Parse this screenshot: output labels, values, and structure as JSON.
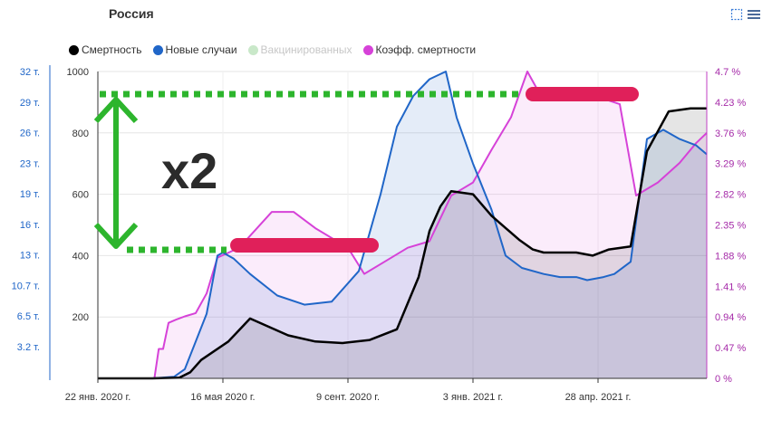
{
  "title": "Россия",
  "toolbar": {
    "icons": [
      "select-icon",
      "menu-icon"
    ]
  },
  "legend": [
    {
      "label": "Смертность",
      "color": "#000000",
      "active": true
    },
    {
      "label": "Новые случаи",
      "color": "#2066c8",
      "active": true
    },
    {
      "label": "Вакцинированных",
      "color": "#c9e8c9",
      "active": false
    },
    {
      "label": "Коэфф. смертности",
      "color": "#d642d8",
      "active": true
    }
  ],
  "annotation": {
    "text": "x2",
    "bar_color": "#e0205a",
    "guide_color": "#2db52d"
  },
  "chart_data": {
    "type": "line",
    "x_tick_labels": [
      "22 янв. 2020 г.",
      "16 мая 2020 г.",
      "9 сент. 2020 г.",
      "3 янв. 2021 г.",
      "28 апр. 2021 г."
    ],
    "y_left_outer": {
      "ticks": [
        "32 т.",
        "29 т.",
        "26 т.",
        "23 т.",
        "19 т.",
        "16 т.",
        "13 т.",
        "10.7 т.",
        "6.5 т.",
        "3.2 т."
      ],
      "color": "#2066c8"
    },
    "y_left_inner": {
      "ticks": [
        "1000",
        "800",
        "600",
        "400",
        "200"
      ],
      "range": [
        0,
        1000
      ]
    },
    "y_right": {
      "ticks": [
        "4.7 %",
        "4.23 %",
        "3.76 %",
        "3.29 %",
        "2.82 %",
        "2.35 %",
        "1.88 %",
        "1.41 %",
        "0.94 %",
        "0.47 %",
        "0 %"
      ],
      "color": "#a52aa8",
      "range": [
        0,
        4.7
      ]
    },
    "series": [
      {
        "name": "Смертность",
        "color": "#000000",
        "x": [
          0,
          50,
          75,
          85,
          95,
          120,
          140,
          175,
          200,
          225,
          250,
          275,
          295,
          305,
          315,
          325,
          345,
          362,
          375,
          388,
          400,
          410,
          425,
          440,
          455,
          470,
          490,
          505,
          525,
          545,
          560
        ],
        "y": [
          0,
          0,
          2,
          20,
          60,
          120,
          195,
          140,
          120,
          115,
          125,
          160,
          330,
          480,
          560,
          610,
          600,
          530,
          490,
          450,
          420,
          410,
          410,
          410,
          400,
          420,
          430,
          740,
          870,
          880,
          880
        ]
      },
      {
        "name": "Новые случаи",
        "color": "#2066c8",
        "x": [
          0,
          50,
          70,
          80,
          100,
          110,
          115,
          125,
          140,
          165,
          190,
          215,
          240,
          260,
          275,
          290,
          305,
          320,
          330,
          345,
          362,
          375,
          390,
          410,
          425,
          440,
          450,
          465,
          475,
          490,
          505,
          520,
          535,
          550,
          560
        ],
        "y": [
          0,
          0,
          5,
          30,
          210,
          400,
          410,
          390,
          340,
          270,
          240,
          250,
          350,
          600,
          820,
          920,
          975,
          1000,
          850,
          700,
          550,
          400,
          360,
          340,
          330,
          330,
          320,
          330,
          340,
          380,
          780,
          810,
          780,
          760,
          730
        ]
      },
      {
        "name": "Коэфф. смертности",
        "color": "#d642d8",
        "x": [
          0,
          52,
          56,
          60,
          65,
          72,
          80,
          90,
          100,
          110,
          130,
          160,
          180,
          200,
          230,
          245,
          265,
          285,
          305,
          325,
          345,
          362,
          380,
          395,
          405,
          412,
          425,
          445,
          462,
          480,
          495,
          515,
          535,
          550,
          560
        ],
        "y": [
          0,
          0,
          0.45,
          0.45,
          0.85,
          0.9,
          0.95,
          1.0,
          1.3,
          1.85,
          2.0,
          2.55,
          2.55,
          2.3,
          2.0,
          1.6,
          1.8,
          2.0,
          2.1,
          2.8,
          3.0,
          3.5,
          4.0,
          4.7,
          4.4,
          4.3,
          4.3,
          4.3,
          4.3,
          4.2,
          2.8,
          3.0,
          3.3,
          3.6,
          3.76
        ]
      }
    ]
  }
}
